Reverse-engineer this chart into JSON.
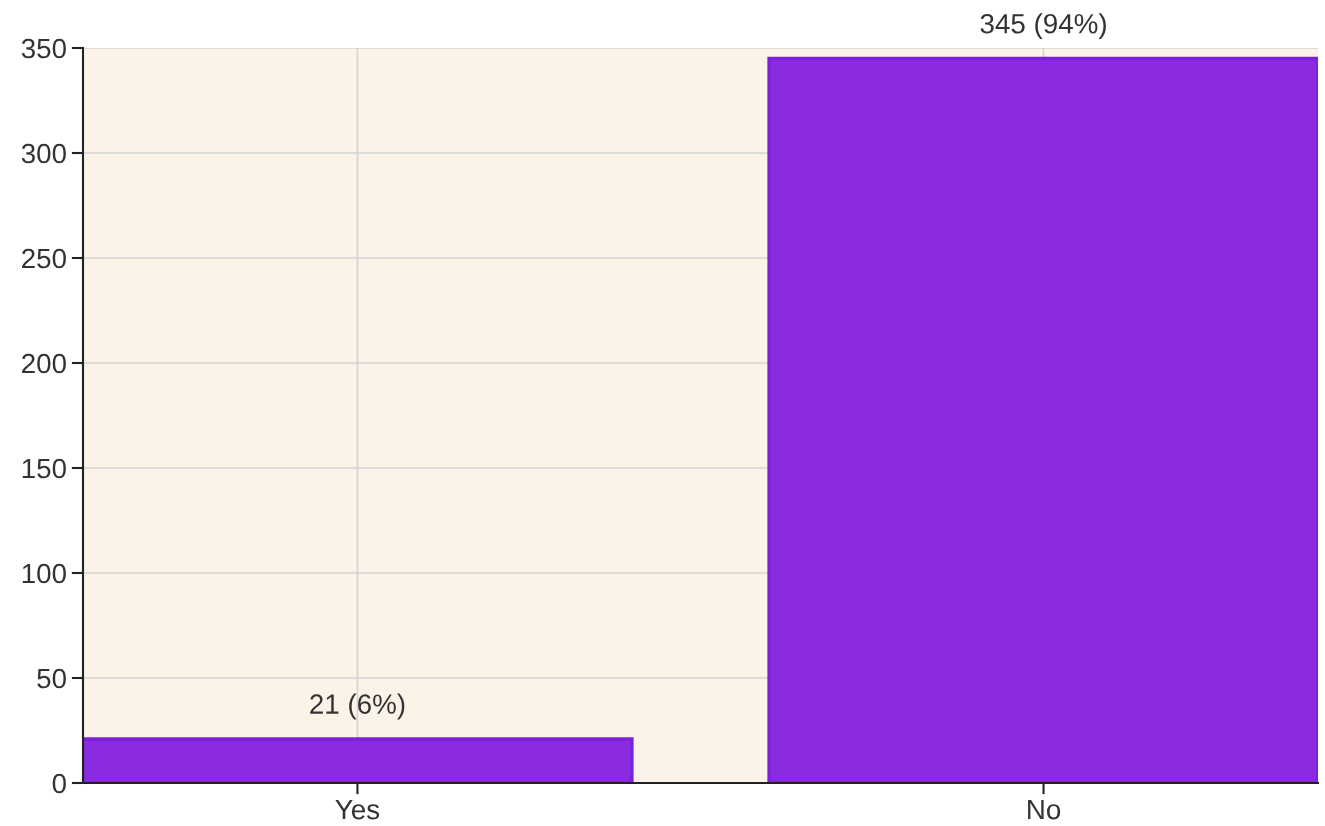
{
  "chart_data": {
    "type": "bar",
    "categories": [
      "Yes",
      "No"
    ],
    "values": [
      21,
      345
    ],
    "color": "#8a2be2",
    "value_labels": [
      "21 (6%)",
      "345 (94%)"
    ],
    "ylim": [
      0,
      350
    ],
    "yticks": [
      0,
      50,
      100,
      150,
      200,
      250,
      300,
      350
    ],
    "grid": true
  }
}
